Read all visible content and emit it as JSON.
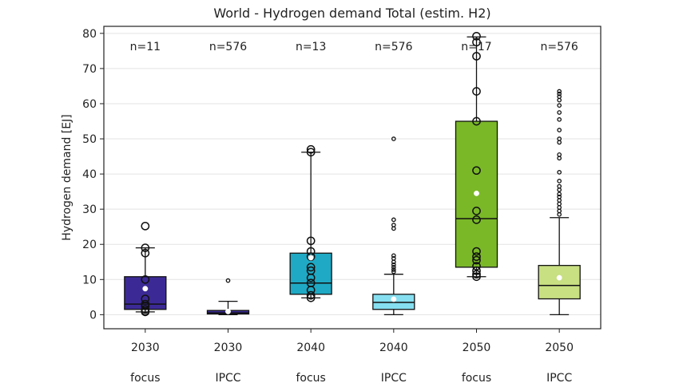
{
  "chart_data": {
    "type": "box",
    "title": "World - Hydrogen demand Total (estim. H2)",
    "ylabel": "Hydrogen demand [EJ]",
    "xlabel": "",
    "ylim": [
      -4,
      82
    ],
    "yticks": [
      0,
      10,
      20,
      30,
      40,
      50,
      60,
      70,
      80
    ],
    "grid": "horizontal",
    "boxes": [
      {
        "year": "2030",
        "group": "focus",
        "n_label": "n=11",
        "color": "#3b2a95",
        "whisker_low": 0.8,
        "q1": 1.5,
        "median": 3.0,
        "q3": 10.8,
        "whisker_high": 19.0,
        "mean": 7.4,
        "points": [
          0.8,
          1.0,
          1.5,
          2.5,
          3.0,
          4.5,
          10.0,
          17.5,
          19.0,
          25.2
        ],
        "outliers": []
      },
      {
        "year": "2030",
        "group": "IPCC",
        "n_label": "n=576",
        "color": "#3b2a95",
        "whisker_low": 0.0,
        "q1": 0.2,
        "median": 0.5,
        "q3": 1.2,
        "whisker_high": 3.8,
        "mean": 0.9,
        "points": [],
        "outliers": [
          9.7
        ]
      },
      {
        "year": "2040",
        "group": "focus",
        "n_label": "n=13",
        "color": "#1fa9c4",
        "whisker_low": 4.8,
        "q1": 5.8,
        "median": 9.0,
        "q3": 17.5,
        "whisker_high": 46.2,
        "mean": 16.2,
        "points": [
          4.8,
          5.5,
          7.0,
          9.0,
          10.5,
          12.5,
          13.5,
          16.5,
          18.0,
          21.0,
          46.2,
          47.0
        ],
        "outliers": []
      },
      {
        "year": "2040",
        "group": "IPCC",
        "n_label": "n=576",
        "color": "#86dff0",
        "whisker_low": 0.0,
        "q1": 1.5,
        "median": 3.5,
        "q3": 5.8,
        "whisker_high": 11.5,
        "mean": 4.4,
        "points": [],
        "outliers": [
          12.2,
          12.8,
          13.5,
          14.2,
          15.0,
          16.0,
          16.8,
          24.5,
          25.5,
          27.0,
          50.0
        ]
      },
      {
        "year": "2050",
        "group": "focus",
        "n_label": "n=17",
        "color": "#7ab828",
        "whisker_low": 10.8,
        "q1": 13.5,
        "median": 27.3,
        "q3": 55.0,
        "whisker_high": 79.0,
        "mean": 34.5,
        "points": [
          10.8,
          11.5,
          12.5,
          13.8,
          15.5,
          16.5,
          18.0,
          27.0,
          29.5,
          41.0,
          55.0,
          63.5,
          73.5,
          77.5,
          79.2
        ],
        "outliers": []
      },
      {
        "year": "2050",
        "group": "IPCC",
        "n_label": "n=576",
        "color": "#c8df82",
        "whisker_low": 0.0,
        "q1": 4.5,
        "median": 8.3,
        "q3": 14.0,
        "whisker_high": 27.6,
        "mean": 10.5,
        "points": [],
        "outliers": [
          28.5,
          29.5,
          30.5,
          31.5,
          32.5,
          33.5,
          34.3,
          35.5,
          36.5,
          38.0,
          40.5,
          44.5,
          45.5,
          49.0,
          50.0,
          52.5,
          55.5,
          57.5,
          59.5,
          61.0,
          62.0,
          62.8,
          63.5
        ]
      }
    ]
  }
}
